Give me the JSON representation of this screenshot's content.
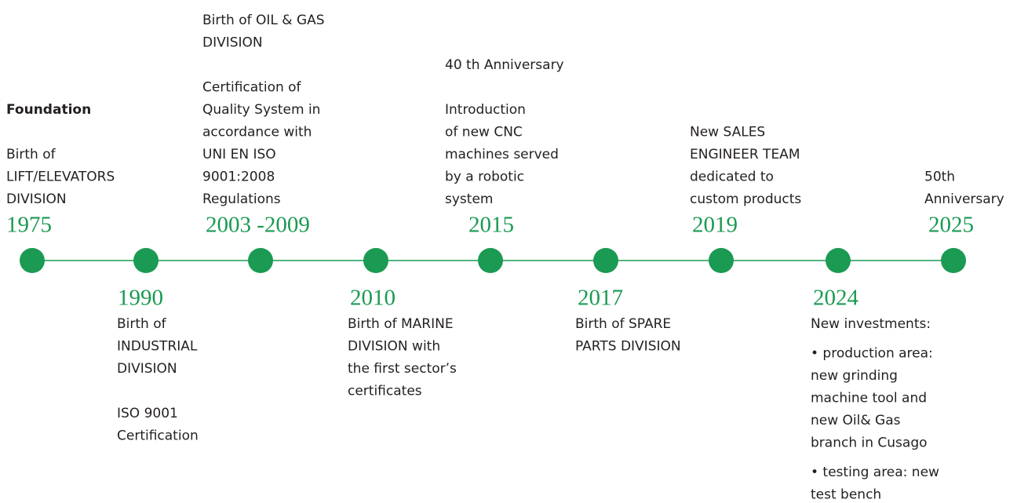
{
  "timeline": {
    "events": [
      {
        "year": "1975",
        "heading": "Foundation",
        "paragraphs": [
          [
            "Birth of",
            "LIFT/ELEVATORS",
            "DIVISION"
          ]
        ]
      },
      {
        "year": "1990",
        "paragraphs": [
          [
            "Birth of",
            "INDUSTRIAL",
            "DIVISION"
          ],
          [
            "ISO 9001",
            "Certification"
          ]
        ]
      },
      {
        "year": "2003 -2009",
        "paragraphs": [
          [
            "Birth of OIL & GAS",
            "DIVISION"
          ],
          [
            "Certification of",
            "Quality System in",
            "accordance with",
            "UNI EN ISO",
            "9001:2008",
            "Regulations"
          ]
        ]
      },
      {
        "year": "2010",
        "paragraphs": [
          [
            "Birth of MARINE",
            "DIVISION with",
            "the first sector’s",
            "certificates"
          ]
        ]
      },
      {
        "year": "2015",
        "paragraphs": [
          [
            "40 th Anniversary"
          ],
          [
            "Introduction",
            "of new CNC",
            "machines served",
            "by a robotic",
            "system"
          ]
        ]
      },
      {
        "year": "2017",
        "paragraphs": [
          [
            "Birth of SPARE",
            "PARTS DIVISION"
          ]
        ]
      },
      {
        "year": "2019",
        "paragraphs": [
          [
            "New SALES",
            "ENGINEER TEAM",
            "dedicated to",
            "custom products"
          ]
        ]
      },
      {
        "year": "2024",
        "paragraphs": [
          [
            "New investments:"
          ],
          [
            "• production area:",
            "new grinding",
            "machine tool and",
            "new Oil& Gas",
            "branch in Cusago"
          ],
          [
            "• testing area: new",
            "test bench"
          ]
        ]
      },
      {
        "year": "2025",
        "paragraphs": [
          [
            "50th",
            "Anniversary"
          ]
        ]
      }
    ]
  }
}
